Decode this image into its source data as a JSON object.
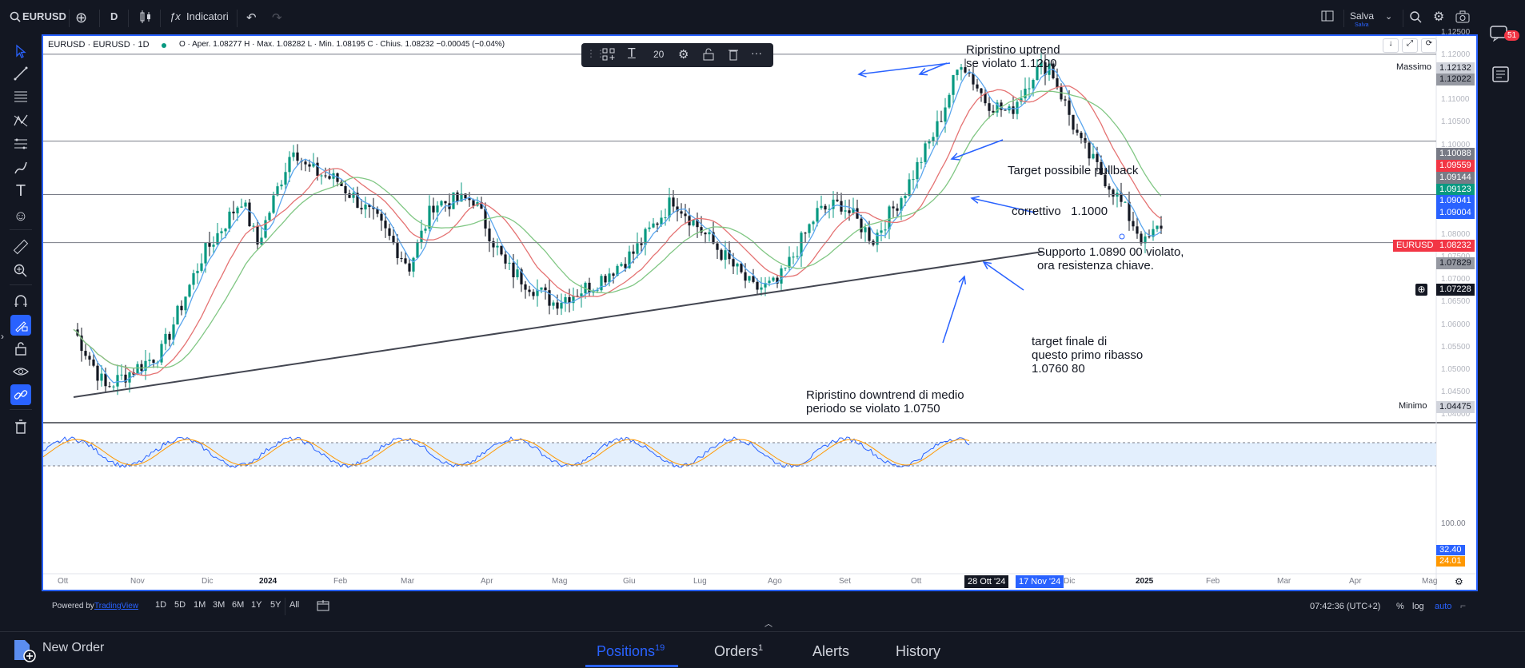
{
  "topbar": {
    "symbol": "EURUSD",
    "interval": "D",
    "indicators_label": "Indicatori",
    "save_label": "Salva",
    "save_sub": "Salva"
  },
  "legend": {
    "title": "EURUSD · EURUSD · 1D",
    "ohlc": "O · Aper. 1.08277  H · Max. 1.08282  L · Min. 1.08195  C · Chius. 1.08232  −0.00045 (−0.04%)"
  },
  "drawing_toolbar": {
    "font_size": "20"
  },
  "notifications": {
    "count": "51"
  },
  "price_axis": {
    "labels": [
      "1.12500",
      "1.12000",
      "1.11500",
      "1.11000",
      "1.10500",
      "1.10000",
      "1.09500",
      "1.09000",
      "1.08500",
      "1.08000",
      "1.07500",
      "1.07000",
      "1.06500",
      "1.06000",
      "1.05500",
      "1.05000",
      "1.04500",
      "1.04000"
    ],
    "max_label": "Massimo",
    "max_value": "1.12132",
    "min_label": "Minimo",
    "min_value": "1.04475",
    "level_1": "1.12022",
    "level_2": "1.10088",
    "red_ma": "1.09559",
    "ma_gray": "1.09144",
    "green_ma": "1.09123",
    "blue_a": "1.09041",
    "blue_b": "1.09004",
    "symbol_tag": "EURUSD",
    "last_price": "1.08232",
    "level_3": "1.07829",
    "crosshair_price": "1.07228"
  },
  "osc_axis": {
    "top": "100.00",
    "k_value": "32.40",
    "d_value": "24.01"
  },
  "time_axis": {
    "labels": [
      "Ott",
      "Nov",
      "Dic",
      "2024",
      "Feb",
      "Mar",
      "Apr",
      "Mag",
      "Giu",
      "Lug",
      "Ago",
      "Set",
      "Ott",
      "Nov",
      "Dic",
      "2025",
      "Feb",
      "Mar",
      "Apr",
      "Mag"
    ],
    "date_a": "28 Ott '24",
    "date_b": "17 Nov '24"
  },
  "annotations": {
    "uptrend_1": "Ripristino uptrend",
    "uptrend_2": "se violato 1.1200",
    "pullback_1": "Target possibile pullback",
    "pullback_2": "correttivo   1.1000",
    "support_1": "Supporto 1.0890 00 violato,",
    "support_2": "ora resistenza chiave.",
    "target_1": "target finale di",
    "target_2": "questo primo ribasso",
    "target_3": "1.0760 80",
    "downtrend_1": "Ripristino downtrend di medio",
    "downtrend_2": "periodo se violato 1.0750"
  },
  "bottombar": {
    "powered_by": "Powered by",
    "tradingview": "TradingView",
    "ranges": [
      "1D",
      "5D",
      "1M",
      "3M",
      "6M",
      "1Y",
      "5Y",
      "All"
    ],
    "clock": "07:42:36 (UTC+2)",
    "percent": "%",
    "log": "log",
    "auto": "auto"
  },
  "tabs": {
    "new_order": "New Order",
    "positions": "Positions",
    "positions_count": "19",
    "orders": "Orders",
    "orders_count": "1",
    "alerts": "Alerts",
    "history": "History"
  },
  "colors": {
    "accent": "#2962ff",
    "red": "#f23645",
    "green": "#089981",
    "ma_blue": "#5aa6ee",
    "ma_red": "#e57373",
    "ma_green": "#81c784"
  }
}
